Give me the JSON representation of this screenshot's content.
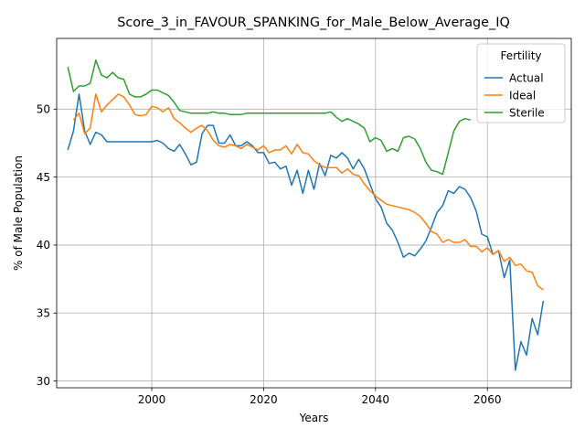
{
  "chart_data": {
    "type": "line",
    "title": "Score_3_in_FAVOUR_SPANKING_for_Male_Below_Average_IQ",
    "xlabel": "Years",
    "ylabel": "% of Male Population",
    "xlim": [
      1983,
      2075
    ],
    "ylim": [
      29.5,
      55.2
    ],
    "xticks": [
      2000,
      2020,
      2040,
      2060
    ],
    "yticks": [
      30,
      35,
      40,
      45,
      50
    ],
    "grid": true,
    "legend": {
      "title": "Fertility",
      "placement": "top-right"
    },
    "series": [
      {
        "name": "Actual",
        "color": "#1f77b4",
        "x": [
          1985,
          1986,
          1987,
          1988,
          1989,
          1990,
          1991,
          1992,
          1993,
          1994,
          1995,
          1996,
          1997,
          1998,
          1999,
          2000,
          2001,
          2002,
          2003,
          2004,
          2005,
          2006,
          2007,
          2008,
          2009,
          2010,
          2011,
          2012,
          2013,
          2014,
          2015,
          2016,
          2017,
          2018,
          2019,
          2020,
          2021,
          2022,
          2023,
          2024,
          2025,
          2026,
          2027,
          2028,
          2029,
          2030,
          2031,
          2032,
          2033,
          2034,
          2035,
          2036,
          2037,
          2038,
          2039,
          2040,
          2041,
          2042,
          2043,
          2044,
          2045,
          2046,
          2047,
          2048,
          2049,
          2050,
          2051,
          2052,
          2053,
          2054,
          2055,
          2056,
          2057,
          2058,
          2059,
          2060,
          2061,
          2062,
          2063,
          2064,
          2065,
          2066,
          2067,
          2068,
          2069,
          2070
        ],
        "values": [
          47.0,
          48.4,
          51.1,
          48.4,
          47.4,
          48.3,
          48.1,
          47.6,
          47.6,
          47.6,
          47.6,
          47.6,
          47.6,
          47.6,
          47.6,
          47.6,
          47.7,
          47.5,
          47.1,
          46.9,
          47.4,
          46.7,
          45.9,
          46.1,
          48.2,
          48.8,
          48.8,
          47.5,
          47.5,
          48.1,
          47.3,
          47.3,
          47.6,
          47.3,
          46.8,
          46.8,
          46.0,
          46.1,
          45.6,
          45.8,
          44.4,
          45.5,
          43.8,
          45.5,
          44.1,
          46.0,
          45.1,
          46.6,
          46.4,
          46.8,
          46.4,
          45.6,
          46.3,
          45.6,
          44.5,
          43.4,
          42.8,
          41.6,
          41.1,
          40.2,
          39.1,
          39.4,
          39.2,
          39.7,
          40.3,
          41.3,
          42.4,
          42.9,
          44.0,
          43.8,
          44.3,
          44.1,
          43.5,
          42.5,
          40.8,
          40.6,
          39.3,
          39.6,
          37.6,
          38.9,
          30.8,
          32.9,
          31.9,
          34.6,
          33.4,
          35.9
        ]
      },
      {
        "name": "Ideal",
        "color": "#ff7f0e",
        "x": [
          1986,
          1987,
          1988,
          1989,
          1990,
          1991,
          1992,
          1993,
          1994,
          1995,
          1996,
          1997,
          1998,
          1999,
          2000,
          2001,
          2002,
          2003,
          2004,
          2005,
          2006,
          2007,
          2008,
          2009,
          2010,
          2011,
          2012,
          2013,
          2014,
          2015,
          2016,
          2017,
          2018,
          2019,
          2020,
          2021,
          2022,
          2023,
          2024,
          2025,
          2026,
          2027,
          2028,
          2029,
          2030,
          2031,
          2032,
          2033,
          2034,
          2035,
          2036,
          2037,
          2038,
          2039,
          2040,
          2041,
          2042,
          2043,
          2044,
          2045,
          2046,
          2047,
          2048,
          2049,
          2050,
          2051,
          2052,
          2053,
          2054,
          2055,
          2056,
          2057,
          2058,
          2059,
          2060,
          2061,
          2062,
          2063,
          2064,
          2065,
          2066,
          2067,
          2068,
          2069,
          2070
        ],
        "values": [
          49.2,
          49.7,
          48.2,
          48.6,
          51.1,
          49.8,
          50.3,
          50.7,
          51.1,
          50.9,
          50.3,
          49.6,
          49.5,
          49.6,
          50.2,
          50.1,
          49.8,
          50.1,
          49.3,
          49.0,
          48.6,
          48.3,
          48.6,
          48.8,
          48.4,
          47.7,
          47.3,
          47.2,
          47.4,
          47.3,
          47.1,
          47.4,
          47.2,
          47.0,
          47.3,
          46.8,
          47.0,
          47.0,
          47.3,
          46.7,
          47.4,
          46.8,
          46.7,
          46.2,
          45.9,
          45.7,
          45.7,
          45.7,
          45.3,
          45.6,
          45.2,
          45.1,
          44.5,
          44.0,
          43.6,
          43.3,
          43.0,
          42.9,
          42.8,
          42.7,
          42.6,
          42.4,
          42.1,
          41.6,
          41.0,
          40.8,
          40.2,
          40.4,
          40.2,
          40.2,
          40.4,
          39.9,
          39.9,
          39.5,
          39.8,
          39.3,
          39.6,
          38.8,
          39.1,
          38.5,
          38.6,
          38.1,
          38.0,
          37.0,
          36.7
        ]
      },
      {
        "name": "Sterile",
        "color": "#2ca02c",
        "x": [
          1985,
          1986,
          1987,
          1988,
          1989,
          1990,
          1991,
          1992,
          1993,
          1994,
          1995,
          1996,
          1997,
          1998,
          1999,
          2000,
          2001,
          2002,
          2003,
          2004,
          2005,
          2006,
          2007,
          2008,
          2009,
          2010,
          2011,
          2012,
          2013,
          2014,
          2015,
          2016,
          2017,
          2018,
          2019,
          2020,
          2021,
          2022,
          2023,
          2024,
          2025,
          2026,
          2027,
          2028,
          2029,
          2030,
          2031,
          2032,
          2033,
          2034,
          2035,
          2036,
          2037,
          2038,
          2039,
          2040,
          2041,
          2042,
          2043,
          2044,
          2045,
          2046,
          2047,
          2048,
          2049,
          2050,
          2051,
          2052,
          2053,
          2054,
          2055,
          2056,
          2057
        ],
        "values": [
          53.1,
          51.3,
          51.7,
          51.7,
          51.9,
          53.6,
          52.5,
          52.3,
          52.7,
          52.3,
          52.2,
          51.1,
          50.9,
          50.9,
          51.1,
          51.4,
          51.4,
          51.2,
          51.0,
          50.5,
          49.9,
          49.8,
          49.7,
          49.7,
          49.7,
          49.7,
          49.8,
          49.7,
          49.7,
          49.6,
          49.6,
          49.6,
          49.7,
          49.7,
          49.7,
          49.7,
          49.7,
          49.7,
          49.7,
          49.7,
          49.7,
          49.7,
          49.7,
          49.7,
          49.7,
          49.7,
          49.7,
          49.8,
          49.4,
          49.1,
          49.3,
          49.1,
          48.9,
          48.6,
          47.6,
          47.9,
          47.7,
          46.9,
          47.1,
          46.9,
          47.9,
          48.0,
          47.8,
          47.1,
          46.1,
          45.5,
          45.4,
          45.2,
          46.8,
          48.4,
          49.1,
          49.3,
          49.2
        ]
      }
    ]
  }
}
